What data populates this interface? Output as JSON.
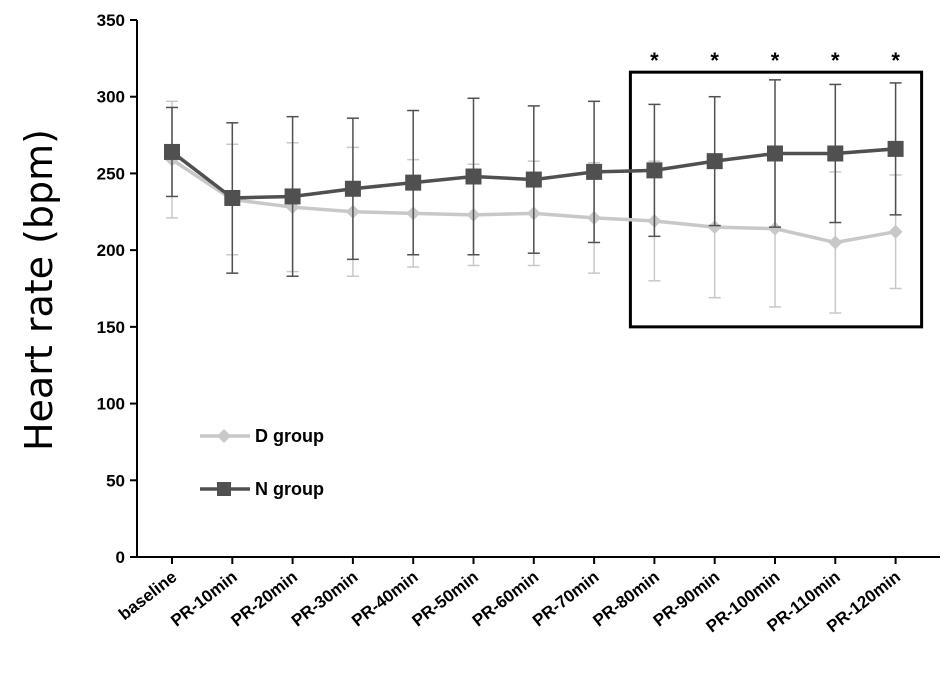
{
  "chart_data": {
    "type": "line",
    "ylabel": "Heart rate (bpm)",
    "xlabel": "",
    "ylim": [
      0,
      350
    ],
    "yticks": [
      "0",
      "50",
      "100",
      "150",
      "200",
      "250",
      "300",
      "350"
    ],
    "categories": [
      "baseline",
      "PR-10min",
      "PR-20min",
      "PR-30min",
      "PR-40min",
      "PR-50min",
      "PR-60min",
      "PR-70min",
      "PR-80min",
      "PR-90min",
      "PR-100min",
      "PR-110min",
      "PR-120min"
    ],
    "series": [
      {
        "name": "D group",
        "marker": "diamond",
        "color": "#c8c8c8",
        "values": [
          259,
          233,
          228,
          225,
          224,
          223,
          224,
          221,
          219,
          215,
          214,
          205,
          212
        ],
        "error": [
          38,
          36,
          42,
          42,
          35,
          33,
          34,
          36,
          39,
          46,
          51,
          46,
          37
        ]
      },
      {
        "name": "N group",
        "marker": "square",
        "color": "#505050",
        "values": [
          264,
          234,
          235,
          240,
          244,
          248,
          246,
          251,
          252,
          258,
          263,
          263,
          266
        ],
        "error": [
          29,
          49,
          52,
          46,
          47,
          51,
          48,
          46,
          43,
          42,
          48,
          45,
          43
        ]
      }
    ],
    "significant": [
      "PR-80min",
      "PR-90min",
      "PR-100min",
      "PR-110min",
      "PR-120min"
    ],
    "significance_symbol": "*",
    "legend": [
      "D group",
      "N group"
    ],
    "legend_position": "lower-left"
  }
}
